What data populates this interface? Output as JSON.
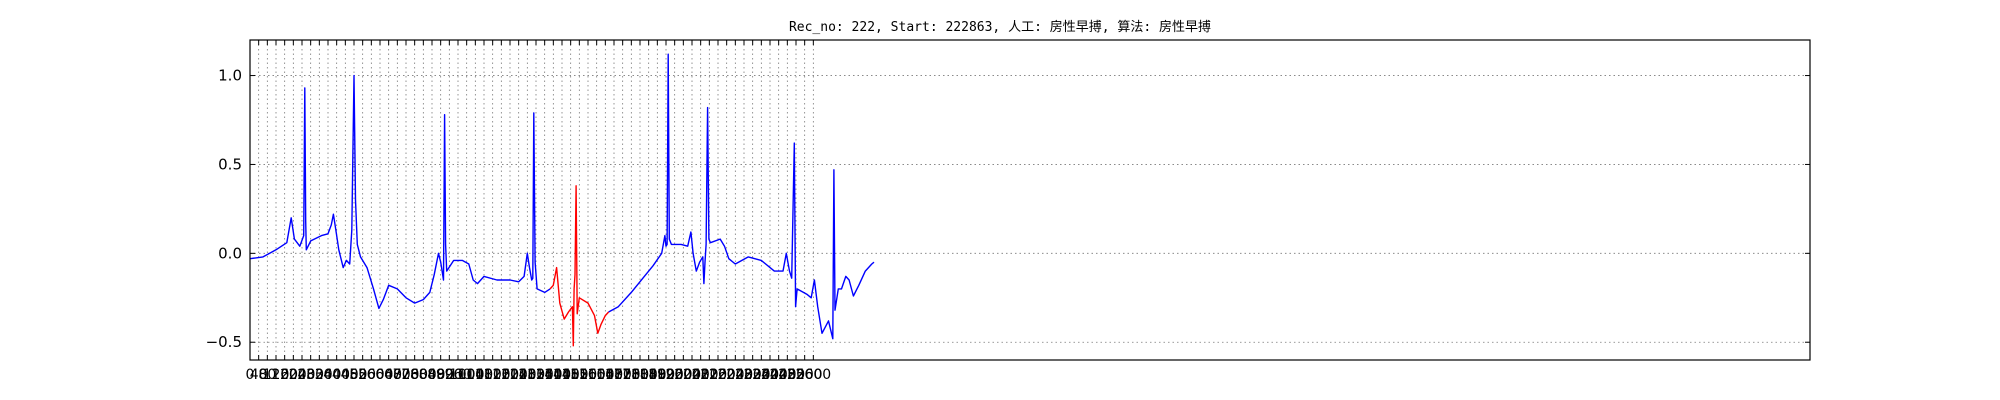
{
  "chart_data": {
    "type": "line",
    "title": "Rec_no: 222, Start: 222863, 人工: 房性早搏, 算法: 房性早搏",
    "xlabel": "",
    "ylabel": "",
    "xlim": [
      0,
      7200
    ],
    "ylim": [
      -0.6,
      1.2
    ],
    "grid": true,
    "legend": "none",
    "yticks": [
      -0.5,
      0.0,
      0.5,
      1.0
    ],
    "ytick_labels": [
      "−0.5",
      "0.0",
      "0.5",
      "1.0"
    ],
    "xticks": [
      0,
      40,
      80,
      120,
      160,
      200,
      240,
      280,
      320,
      360,
      400,
      440,
      480,
      520,
      560,
      600,
      640,
      680,
      720,
      760,
      800,
      840,
      880,
      920,
      960,
      1000,
      1040,
      1080,
      1120,
      1160,
      1200,
      1240,
      1280,
      1320,
      1360,
      1400,
      1440,
      1480,
      1520,
      1560,
      1600,
      1640,
      1680,
      1720,
      1760,
      1800,
      1840,
      1880,
      1920,
      1960,
      2000,
      2040,
      2080,
      2120,
      2160,
      2200,
      2240,
      2280,
      2320,
      2360,
      2400,
      2440,
      2480,
      2520,
      2560,
      2600
    ],
    "xtick_labels": [
      "0",
      "40",
      "80",
      "120",
      "160",
      "200",
      "240",
      "280",
      "320",
      "360",
      "400",
      "440",
      "480",
      "520",
      "560",
      "600",
      "640",
      "680",
      "720",
      "760",
      "800",
      "840",
      "880",
      "920",
      "960",
      "1000",
      "1040",
      "1080",
      "1120",
      "1160",
      "1200",
      "1240",
      "1280",
      "1320",
      "1360",
      "1400",
      "1440",
      "1480",
      "1520",
      "1560",
      "1600",
      "1640",
      "1680",
      "1720",
      "1760",
      "1800",
      "1840",
      "1880",
      "1920",
      "1960",
      "2000",
      "2040",
      "2080",
      "2120",
      "2160",
      "2200",
      "2240",
      "2280",
      "2320",
      "2360",
      "2400",
      "2440",
      "2480",
      "2520",
      "2560",
      "2600"
    ],
    "series": [
      {
        "color": "#0000ff",
        "points": [
          [
            0,
            -0.03
          ],
          [
            60,
            -0.02
          ],
          [
            120,
            0.02
          ],
          [
            170,
            0.06
          ],
          [
            190,
            0.2
          ],
          [
            205,
            0.08
          ],
          [
            230,
            0.04
          ],
          [
            248,
            0.1
          ],
          [
            253,
            0.93
          ],
          [
            257,
            0.18
          ],
          [
            260,
            0.02
          ],
          [
            280,
            0.07
          ],
          [
            330,
            0.1
          ],
          [
            360,
            0.11
          ],
          [
            375,
            0.16
          ],
          [
            385,
            0.22
          ],
          [
            395,
            0.14
          ],
          [
            410,
            0.02
          ],
          [
            430,
            -0.08
          ],
          [
            445,
            -0.04
          ],
          [
            460,
            -0.06
          ],
          [
            470,
            0.13
          ],
          [
            480,
            1.0
          ],
          [
            487,
            0.3
          ],
          [
            495,
            0.05
          ],
          [
            510,
            -0.02
          ],
          [
            540,
            -0.08
          ],
          [
            570,
            -0.2
          ],
          [
            595,
            -0.31
          ],
          [
            615,
            -0.26
          ],
          [
            640,
            -0.18
          ],
          [
            680,
            -0.2
          ],
          [
            720,
            -0.25
          ],
          [
            760,
            -0.28
          ],
          [
            800,
            -0.26
          ],
          [
            830,
            -0.22
          ],
          [
            850,
            -0.12
          ],
          [
            870,
            0.0
          ],
          [
            880,
            -0.05
          ],
          [
            893,
            -0.15
          ],
          [
            898,
            0.78
          ],
          [
            903,
            0.05
          ],
          [
            908,
            -0.1
          ],
          [
            940,
            -0.04
          ],
          [
            980,
            -0.04
          ],
          [
            1010,
            -0.06
          ],
          [
            1030,
            -0.15
          ],
          [
            1050,
            -0.17
          ],
          [
            1080,
            -0.13
          ],
          [
            1140,
            -0.15
          ],
          [
            1200,
            -0.15
          ],
          [
            1240,
            -0.16
          ],
          [
            1265,
            -0.13
          ],
          [
            1280,
            0.0
          ],
          [
            1290,
            -0.08
          ],
          [
            1300,
            -0.15
          ],
          [
            1305,
            -0.14
          ],
          [
            1310,
            0.79
          ],
          [
            1316,
            -0.05
          ],
          [
            1325,
            -0.2
          ],
          [
            1360,
            -0.22
          ],
          [
            1385,
            -0.2
          ]
        ]
      },
      {
        "color": "#ff0000",
        "points": [
          [
            1385,
            -0.2
          ],
          [
            1400,
            -0.18
          ],
          [
            1415,
            -0.08
          ],
          [
            1430,
            -0.28
          ],
          [
            1450,
            -0.37
          ],
          [
            1470,
            -0.33
          ],
          [
            1488,
            -0.3
          ],
          [
            1492,
            -0.52
          ],
          [
            1496,
            -0.2
          ],
          [
            1500,
            -0.12
          ],
          [
            1505,
            0.38
          ],
          [
            1510,
            -0.34
          ],
          [
            1520,
            -0.25
          ],
          [
            1560,
            -0.28
          ],
          [
            1590,
            -0.35
          ],
          [
            1605,
            -0.45
          ],
          [
            1620,
            -0.4
          ],
          [
            1640,
            -0.35
          ],
          [
            1655,
            -0.33
          ]
        ]
      },
      {
        "color": "#0000ff",
        "points": [
          [
            1655,
            -0.33
          ],
          [
            1700,
            -0.3
          ],
          [
            1760,
            -0.22
          ],
          [
            1820,
            -0.13
          ],
          [
            1860,
            -0.07
          ],
          [
            1900,
            0.0
          ],
          [
            1915,
            0.1
          ],
          [
            1920,
            0.04
          ],
          [
            1925,
            0.05
          ],
          [
            1930,
            1.12
          ],
          [
            1935,
            0.08
          ],
          [
            1945,
            0.05
          ],
          [
            1990,
            0.05
          ],
          [
            2020,
            0.04
          ],
          [
            2035,
            0.12
          ],
          [
            2045,
            0.0
          ],
          [
            2060,
            -0.1
          ],
          [
            2075,
            -0.05
          ],
          [
            2090,
            -0.02
          ],
          [
            2095,
            -0.17
          ],
          [
            2100,
            -0.05
          ],
          [
            2105,
            0.05
          ],
          [
            2112,
            0.82
          ],
          [
            2118,
            0.08
          ],
          [
            2125,
            0.06
          ],
          [
            2170,
            0.08
          ],
          [
            2190,
            0.04
          ],
          [
            2210,
            -0.03
          ],
          [
            2240,
            -0.06
          ],
          [
            2300,
            -0.02
          ],
          [
            2360,
            -0.04
          ],
          [
            2420,
            -0.1
          ],
          [
            2460,
            -0.1
          ],
          [
            2475,
            0.0
          ],
          [
            2490,
            -0.1
          ],
          [
            2500,
            -0.14
          ],
          [
            2512,
            0.62
          ],
          [
            2518,
            -0.3
          ],
          [
            2525,
            -0.2
          ],
          [
            2570,
            -0.23
          ],
          [
            2590,
            -0.25
          ],
          [
            2605,
            -0.15
          ],
          [
            2620,
            -0.3
          ],
          [
            2640,
            -0.45
          ],
          [
            2670,
            -0.38
          ],
          [
            2690,
            -0.48
          ],
          [
            2695,
            0.47
          ],
          [
            2700,
            -0.32
          ],
          [
            2715,
            -0.2
          ],
          [
            2730,
            -0.2
          ],
          [
            2750,
            -0.13
          ],
          [
            2765,
            -0.15
          ],
          [
            2785,
            -0.24
          ],
          [
            2810,
            -0.18
          ],
          [
            2840,
            -0.1
          ],
          [
            2870,
            -0.06
          ],
          [
            2880,
            -0.05
          ]
        ]
      }
    ]
  }
}
